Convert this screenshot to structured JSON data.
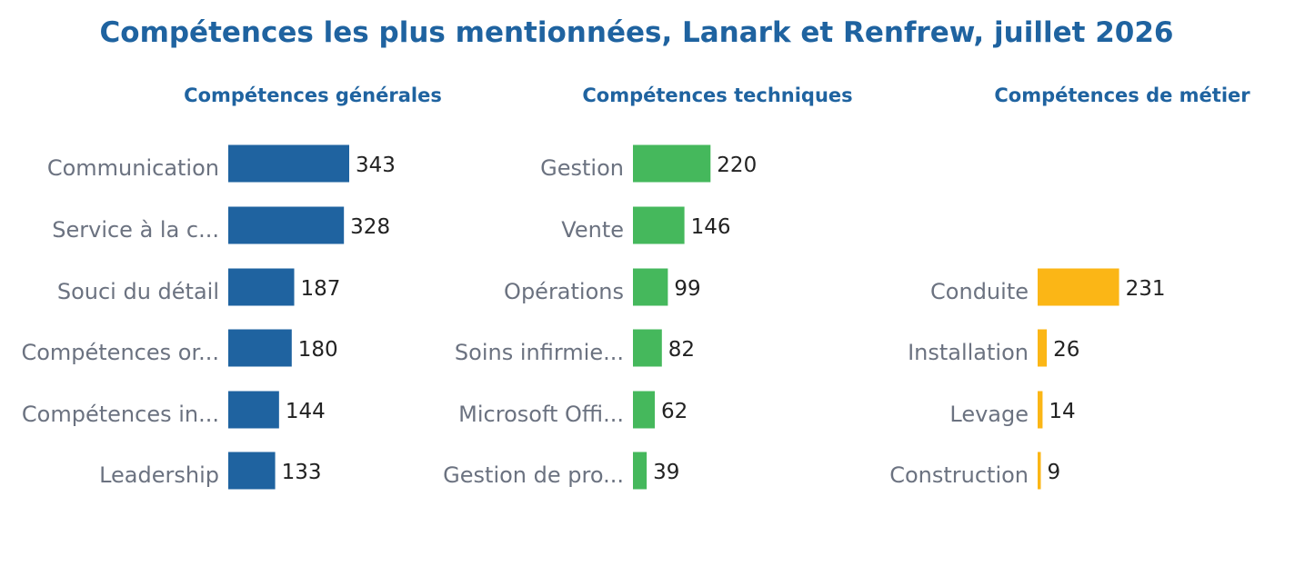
{
  "title": "Compétences les plus mentionnées, Lanark et Renfrew, juillet 2026",
  "colors": {
    "title": "#1f63a0",
    "label": "#6b7280",
    "value": "#222222"
  },
  "chart_data": [
    {
      "type": "bar",
      "orientation": "horizontal",
      "title": "Compétences générales",
      "color": "#1f63a0",
      "categories": [
        "Communication",
        "Service à la c...",
        "Souci du détail",
        "Compétences or...",
        "Compétences in...",
        "Leadership"
      ],
      "values": [
        343,
        328,
        187,
        180,
        144,
        133
      ]
    },
    {
      "type": "bar",
      "orientation": "horizontal",
      "title": "Compétences techniques",
      "color": "#45b85c",
      "categories": [
        "Gestion",
        "Vente",
        "Opérations",
        "Soins infirmie...",
        "Microsoft Offi...",
        "Gestion de pro..."
      ],
      "values": [
        220,
        146,
        99,
        82,
        62,
        39
      ]
    },
    {
      "type": "bar",
      "orientation": "horizontal",
      "title": "Compétences de métier",
      "color": "#fbb616",
      "categories": [
        "",
        "",
        "Conduite",
        "Installation",
        "Levage",
        "Construction"
      ],
      "values": [
        null,
        null,
        231,
        26,
        14,
        9
      ]
    }
  ]
}
